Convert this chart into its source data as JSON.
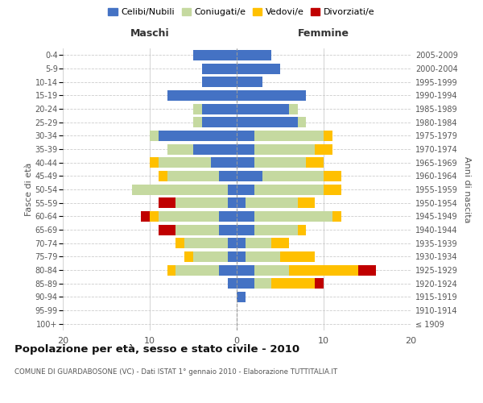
{
  "age_groups": [
    "100+",
    "95-99",
    "90-94",
    "85-89",
    "80-84",
    "75-79",
    "70-74",
    "65-69",
    "60-64",
    "55-59",
    "50-54",
    "45-49",
    "40-44",
    "35-39",
    "30-34",
    "25-29",
    "20-24",
    "15-19",
    "10-14",
    "5-9",
    "0-4"
  ],
  "birth_years": [
    "≤ 1909",
    "1910-1914",
    "1915-1919",
    "1920-1924",
    "1925-1929",
    "1930-1934",
    "1935-1939",
    "1940-1944",
    "1945-1949",
    "1950-1954",
    "1955-1959",
    "1960-1964",
    "1965-1969",
    "1970-1974",
    "1975-1979",
    "1980-1984",
    "1985-1989",
    "1990-1994",
    "1995-1999",
    "2000-2004",
    "2005-2009"
  ],
  "maschi": {
    "celibi": [
      0,
      0,
      0,
      1,
      2,
      1,
      1,
      2,
      2,
      1,
      1,
      2,
      3,
      5,
      9,
      4,
      4,
      8,
      4,
      4,
      5
    ],
    "coniugati": [
      0,
      0,
      0,
      0,
      5,
      4,
      5,
      5,
      7,
      6,
      11,
      6,
      6,
      3,
      1,
      1,
      1,
      0,
      0,
      0,
      0
    ],
    "vedovi": [
      0,
      0,
      0,
      0,
      1,
      1,
      1,
      0,
      1,
      0,
      0,
      1,
      1,
      0,
      0,
      0,
      0,
      0,
      0,
      0,
      0
    ],
    "divorziati": [
      0,
      0,
      0,
      0,
      0,
      0,
      0,
      2,
      1,
      2,
      0,
      0,
      0,
      0,
      0,
      0,
      0,
      0,
      0,
      0,
      0
    ]
  },
  "femmine": {
    "nubili": [
      0,
      0,
      1,
      2,
      2,
      1,
      1,
      2,
      2,
      1,
      2,
      3,
      2,
      2,
      2,
      7,
      6,
      8,
      3,
      5,
      4
    ],
    "coniugate": [
      0,
      0,
      0,
      2,
      4,
      4,
      3,
      5,
      9,
      6,
      8,
      7,
      6,
      7,
      8,
      1,
      1,
      0,
      0,
      0,
      0
    ],
    "vedove": [
      0,
      0,
      0,
      5,
      8,
      4,
      2,
      1,
      1,
      2,
      2,
      2,
      2,
      2,
      1,
      0,
      0,
      0,
      0,
      0,
      0
    ],
    "divorziate": [
      0,
      0,
      0,
      1,
      2,
      0,
      0,
      0,
      0,
      0,
      0,
      0,
      0,
      0,
      0,
      0,
      0,
      0,
      0,
      0,
      0
    ]
  },
  "colors": {
    "celibi_nubili": "#4472c4",
    "coniugati": "#c5d9a0",
    "vedovi": "#ffc000",
    "divorziati": "#c00000"
  },
  "title": "Popolazione per età, sesso e stato civile - 2010",
  "subtitle": "COMUNE DI GUARDABOSONE (VC) - Dati ISTAT 1° gennaio 2010 - Elaborazione TUTTITALIA.IT",
  "xlabel_left": "Maschi",
  "xlabel_right": "Femmine",
  "ylabel_left": "Fasce di età",
  "ylabel_right": "Anni di nascita",
  "xlim": 20,
  "legend_labels": [
    "Celibi/Nubili",
    "Coniugati/e",
    "Vedovi/e",
    "Divorziati/e"
  ],
  "background_color": "#ffffff",
  "grid_color": "#cccccc"
}
